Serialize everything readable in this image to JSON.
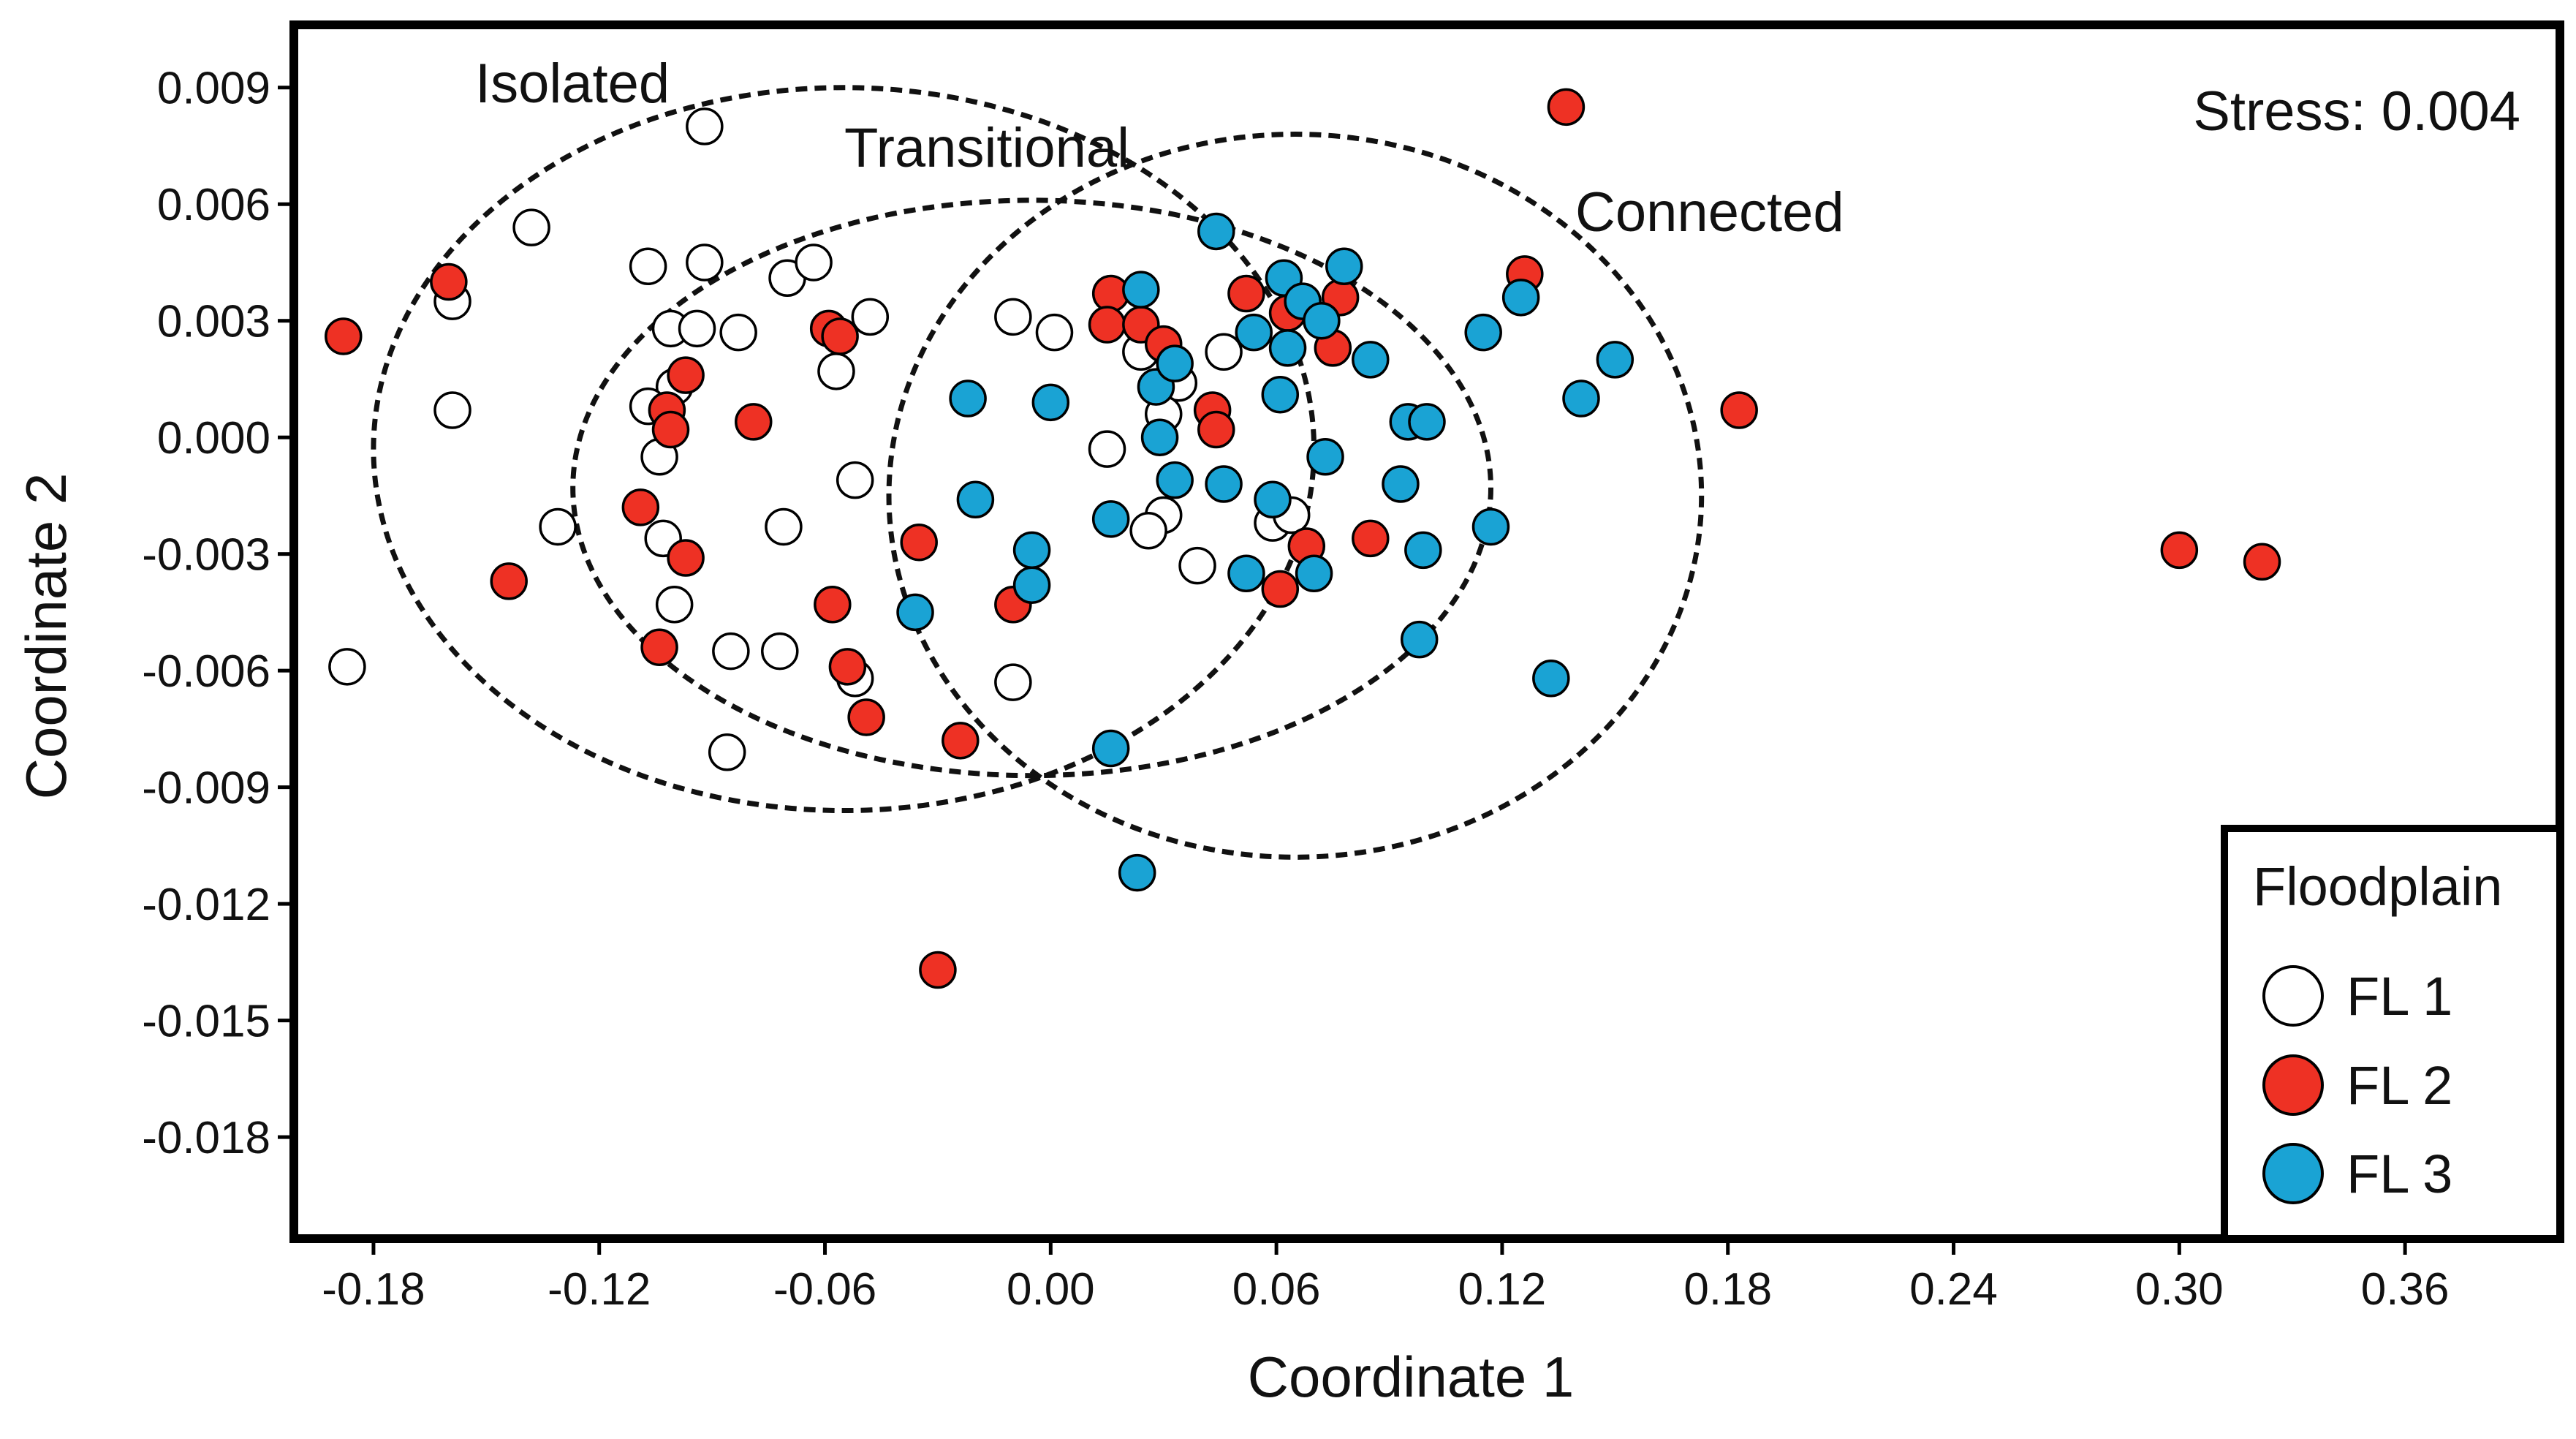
{
  "chart_data": {
    "type": "scatter",
    "title": "",
    "xlabel": "Coordinate 1",
    "ylabel": "Coordinate 2",
    "xlim": [
      -0.2,
      0.4
    ],
    "ylim": [
      -0.0205,
      0.0105
    ],
    "x_ticks": [
      -0.18,
      -0.12,
      -0.06,
      0.0,
      0.06,
      0.12,
      0.18,
      0.24,
      0.3,
      0.36
    ],
    "x_tick_labels": [
      "-0.18",
      "-0.12",
      "-0.06",
      "0.00",
      "0.06",
      "0.12",
      "0.18",
      "0.24",
      "0.30",
      "0.36"
    ],
    "y_ticks": [
      0.009,
      0.006,
      0.003,
      0.0,
      -0.003,
      -0.006,
      -0.009,
      -0.012,
      -0.015,
      -0.018
    ],
    "y_tick_labels": [
      "0.009",
      "0.006",
      "0.003",
      "0.000",
      "-0.003",
      "-0.006",
      "-0.009",
      "-0.012",
      "-0.015",
      "-0.018"
    ],
    "stress_label": "Stress: 0.004",
    "legend": {
      "title": "Floodplain",
      "position": "bottom-right"
    },
    "ellipses": [
      {
        "name": "Isolated",
        "cx": -0.055,
        "cy": -0.0003,
        "rx": 0.125,
        "ry": 0.0093
      },
      {
        "name": "Transitional",
        "cx": -0.005,
        "cy": -0.0013,
        "rx": 0.122,
        "ry": 0.0074
      },
      {
        "name": "Connected",
        "cx": 0.065,
        "cy": -0.0015,
        "rx": 0.108,
        "ry": 0.0093
      }
    ],
    "series": [
      {
        "name": "FL 1",
        "color": "#ffffff",
        "points": [
          [
            -0.092,
            0.008
          ],
          [
            -0.138,
            0.0054
          ],
          [
            -0.107,
            0.0044
          ],
          [
            -0.092,
            0.0045
          ],
          [
            -0.07,
            0.0041
          ],
          [
            -0.063,
            0.0045
          ],
          [
            -0.159,
            0.0035
          ],
          [
            -0.048,
            0.0031
          ],
          [
            -0.101,
            0.0028
          ],
          [
            -0.094,
            0.0028
          ],
          [
            -0.083,
            0.0027
          ],
          [
            -0.057,
            0.0017
          ],
          [
            -0.1,
            0.0013
          ],
          [
            -0.107,
            0.0008
          ],
          [
            -0.159,
            0.0007
          ],
          [
            -0.104,
            -0.0005
          ],
          [
            -0.052,
            -0.0011
          ],
          [
            -0.131,
            -0.0023
          ],
          [
            -0.103,
            -0.0026
          ],
          [
            -0.071,
            -0.0023
          ],
          [
            -0.1,
            -0.0043
          ],
          [
            -0.085,
            -0.0055
          ],
          [
            -0.072,
            -0.0055
          ],
          [
            -0.086,
            -0.0081
          ],
          [
            -0.052,
            -0.0062
          ],
          [
            -0.187,
            -0.0059
          ],
          [
            -0.01,
            0.0031
          ],
          [
            0.001,
            0.0027
          ],
          [
            0.024,
            0.0022
          ],
          [
            0.046,
            0.0022
          ],
          [
            0.034,
            0.0014
          ],
          [
            0.03,
            0.0006
          ],
          [
            0.015,
            -0.0003
          ],
          [
            0.03,
            -0.002
          ],
          [
            0.026,
            -0.0024
          ],
          [
            0.059,
            -0.0022
          ],
          [
            0.064,
            -0.002
          ],
          [
            0.039,
            -0.0033
          ],
          [
            -0.01,
            -0.0063
          ]
        ]
      },
      {
        "name": "FL 2",
        "color": "#ee3124",
        "points": [
          [
            0.137,
            0.0085
          ],
          [
            -0.16,
            0.004
          ],
          [
            -0.188,
            0.0026
          ],
          [
            -0.059,
            0.0028
          ],
          [
            -0.056,
            0.0026
          ],
          [
            -0.097,
            0.0016
          ],
          [
            -0.102,
            0.0007
          ],
          [
            -0.101,
            0.0002
          ],
          [
            -0.079,
            0.0004
          ],
          [
            -0.109,
            -0.0018
          ],
          [
            -0.097,
            -0.0031
          ],
          [
            -0.144,
            -0.0037
          ],
          [
            -0.058,
            -0.0043
          ],
          [
            -0.104,
            -0.0054
          ],
          [
            -0.054,
            -0.0059
          ],
          [
            -0.049,
            -0.0072
          ],
          [
            -0.035,
            -0.0027
          ],
          [
            -0.024,
            -0.0078
          ],
          [
            -0.03,
            -0.0137
          ],
          [
            -0.01,
            -0.0043
          ],
          [
            0.016,
            0.0037
          ],
          [
            0.015,
            0.0029
          ],
          [
            0.024,
            0.0029
          ],
          [
            0.03,
            0.0024
          ],
          [
            0.043,
            0.0007
          ],
          [
            0.044,
            0.0002
          ],
          [
            0.052,
            0.0037
          ],
          [
            0.063,
            0.0032
          ],
          [
            0.075,
            0.0023
          ],
          [
            0.077,
            0.0036
          ],
          [
            0.126,
            0.0042
          ],
          [
            0.183,
            0.0007
          ],
          [
            0.068,
            -0.0028
          ],
          [
            0.085,
            -0.0026
          ],
          [
            0.061,
            -0.0039
          ],
          [
            0.3,
            -0.0029
          ],
          [
            0.322,
            -0.0032
          ]
        ]
      },
      {
        "name": "FL 3",
        "color": "#1aa3d4",
        "points": [
          [
            0.044,
            0.0053
          ],
          [
            0.062,
            0.0041
          ],
          [
            0.078,
            0.0044
          ],
          [
            0.024,
            0.0038
          ],
          [
            0.067,
            0.0035
          ],
          [
            0.054,
            0.0027
          ],
          [
            0.072,
            0.003
          ],
          [
            0.063,
            0.0023
          ],
          [
            0.115,
            0.0027
          ],
          [
            0.125,
            0.0036
          ],
          [
            0.15,
            0.002
          ],
          [
            0.085,
            0.002
          ],
          [
            0.141,
            0.001
          ],
          [
            -0.022,
            0.001
          ],
          [
            0.0,
            0.0009
          ],
          [
            0.028,
            0.0013
          ],
          [
            0.033,
            0.0019
          ],
          [
            0.061,
            0.0011
          ],
          [
            0.095,
            0.0004
          ],
          [
            0.1,
            0.0004
          ],
          [
            0.029,
            0.0
          ],
          [
            0.073,
            -0.0005
          ],
          [
            -0.02,
            -0.0016
          ],
          [
            0.016,
            -0.0021
          ],
          [
            0.033,
            -0.0011
          ],
          [
            0.046,
            -0.0012
          ],
          [
            0.059,
            -0.0016
          ],
          [
            0.093,
            -0.0012
          ],
          [
            0.117,
            -0.0023
          ],
          [
            0.099,
            -0.0029
          ],
          [
            -0.005,
            -0.0029
          ],
          [
            -0.005,
            -0.0038
          ],
          [
            -0.036,
            -0.0045
          ],
          [
            0.052,
            -0.0035
          ],
          [
            0.07,
            -0.0035
          ],
          [
            0.098,
            -0.0052
          ],
          [
            0.133,
            -0.0062
          ],
          [
            0.016,
            -0.008
          ],
          [
            0.023,
            -0.0112
          ]
        ]
      }
    ]
  }
}
